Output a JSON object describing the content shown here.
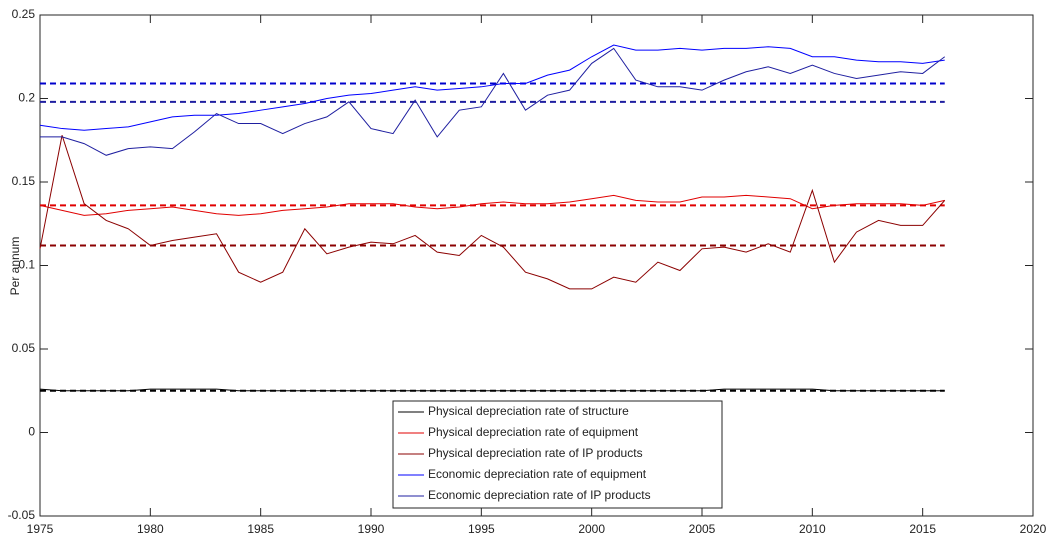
{
  "chart_data": {
    "type": "line",
    "ylabel": "Per annum",
    "x": [
      1975,
      1976,
      1977,
      1978,
      1979,
      1980,
      1981,
      1982,
      1983,
      1984,
      1985,
      1986,
      1987,
      1988,
      1989,
      1990,
      1991,
      1992,
      1993,
      1994,
      1995,
      1996,
      1997,
      1998,
      1999,
      2000,
      2001,
      2002,
      2003,
      2004,
      2005,
      2006,
      2007,
      2008,
      2009,
      2010,
      2011,
      2012,
      2013,
      2014,
      2015,
      2016
    ],
    "xlim": [
      1975,
      2020
    ],
    "xticks": [
      1975,
      1980,
      1985,
      1990,
      1995,
      2000,
      2005,
      2010,
      2015,
      2020
    ],
    "ylim": [
      -0.05,
      0.25
    ],
    "yticks": [
      -0.05,
      0,
      0.05,
      0.1,
      0.15,
      0.2,
      0.25
    ],
    "series": [
      {
        "name": "Physical depreciation rate of structure",
        "color": "#000000",
        "values": [
          0.026,
          0.025,
          0.025,
          0.025,
          0.025,
          0.026,
          0.026,
          0.026,
          0.026,
          0.025,
          0.025,
          0.025,
          0.025,
          0.025,
          0.025,
          0.025,
          0.025,
          0.025,
          0.025,
          0.025,
          0.025,
          0.025,
          0.025,
          0.025,
          0.025,
          0.025,
          0.025,
          0.025,
          0.025,
          0.025,
          0.025,
          0.026,
          0.026,
          0.026,
          0.026,
          0.026,
          0.025,
          0.025,
          0.025,
          0.025,
          0.025,
          0.025
        ]
      },
      {
        "name": "Physical depreciation rate of equipment",
        "color": "#e00000",
        "values": [
          0.136,
          0.133,
          0.13,
          0.131,
          0.133,
          0.134,
          0.135,
          0.133,
          0.131,
          0.13,
          0.131,
          0.133,
          0.134,
          0.135,
          0.137,
          0.137,
          0.137,
          0.135,
          0.134,
          0.135,
          0.137,
          0.138,
          0.137,
          0.137,
          0.138,
          0.14,
          0.142,
          0.139,
          0.138,
          0.138,
          0.141,
          0.141,
          0.142,
          0.141,
          0.14,
          0.134,
          0.136,
          0.137,
          0.137,
          0.137,
          0.136,
          0.139
        ]
      },
      {
        "name": "Physical depreciation rate of IP products",
        "color": "#8b0000",
        "values": [
          0.11,
          0.178,
          0.137,
          0.127,
          0.122,
          0.112,
          0.115,
          0.117,
          0.119,
          0.096,
          0.09,
          0.096,
          0.122,
          0.107,
          0.111,
          0.114,
          0.113,
          0.118,
          0.108,
          0.106,
          0.118,
          0.111,
          0.096,
          0.092,
          0.086,
          0.086,
          0.093,
          0.09,
          0.102,
          0.097,
          0.11,
          0.111,
          0.108,
          0.113,
          0.108,
          0.145,
          0.102,
          0.12,
          0.127,
          0.124,
          0.124,
          0.139
        ]
      },
      {
        "name": "Economic depreciation rate of equipment",
        "color": "#0000ff",
        "values": [
          0.184,
          0.182,
          0.181,
          0.182,
          0.183,
          0.186,
          0.189,
          0.19,
          0.19,
          0.191,
          0.193,
          0.195,
          0.197,
          0.2,
          0.202,
          0.203,
          0.205,
          0.207,
          0.205,
          0.206,
          0.207,
          0.209,
          0.209,
          0.214,
          0.217,
          0.225,
          0.232,
          0.229,
          0.229,
          0.23,
          0.229,
          0.23,
          0.23,
          0.231,
          0.23,
          0.225,
          0.225,
          0.223,
          0.222,
          0.222,
          0.221,
          0.223
        ]
      },
      {
        "name": "Economic depreciation rate of IP products",
        "color": "#1f1fa0",
        "values": [
          0.177,
          0.177,
          0.173,
          0.166,
          0.17,
          0.171,
          0.17,
          0.18,
          0.191,
          0.185,
          0.185,
          0.179,
          0.185,
          0.189,
          0.198,
          0.182,
          0.179,
          0.199,
          0.177,
          0.193,
          0.195,
          0.215,
          0.193,
          0.202,
          0.205,
          0.221,
          0.23,
          0.211,
          0.207,
          0.207,
          0.205,
          0.211,
          0.216,
          0.219,
          0.215,
          0.22,
          0.215,
          0.212,
          0.214,
          0.216,
          0.215,
          0.225
        ]
      }
    ],
    "reference_lines": [
      {
        "value": 0.025,
        "color": "#000000"
      },
      {
        "value": 0.136,
        "color": "#e00000"
      },
      {
        "value": 0.112,
        "color": "#8b0000"
      },
      {
        "value": 0.209,
        "color": "#0000cc"
      },
      {
        "value": 0.198,
        "color": "#1f1fa0"
      }
    ]
  }
}
